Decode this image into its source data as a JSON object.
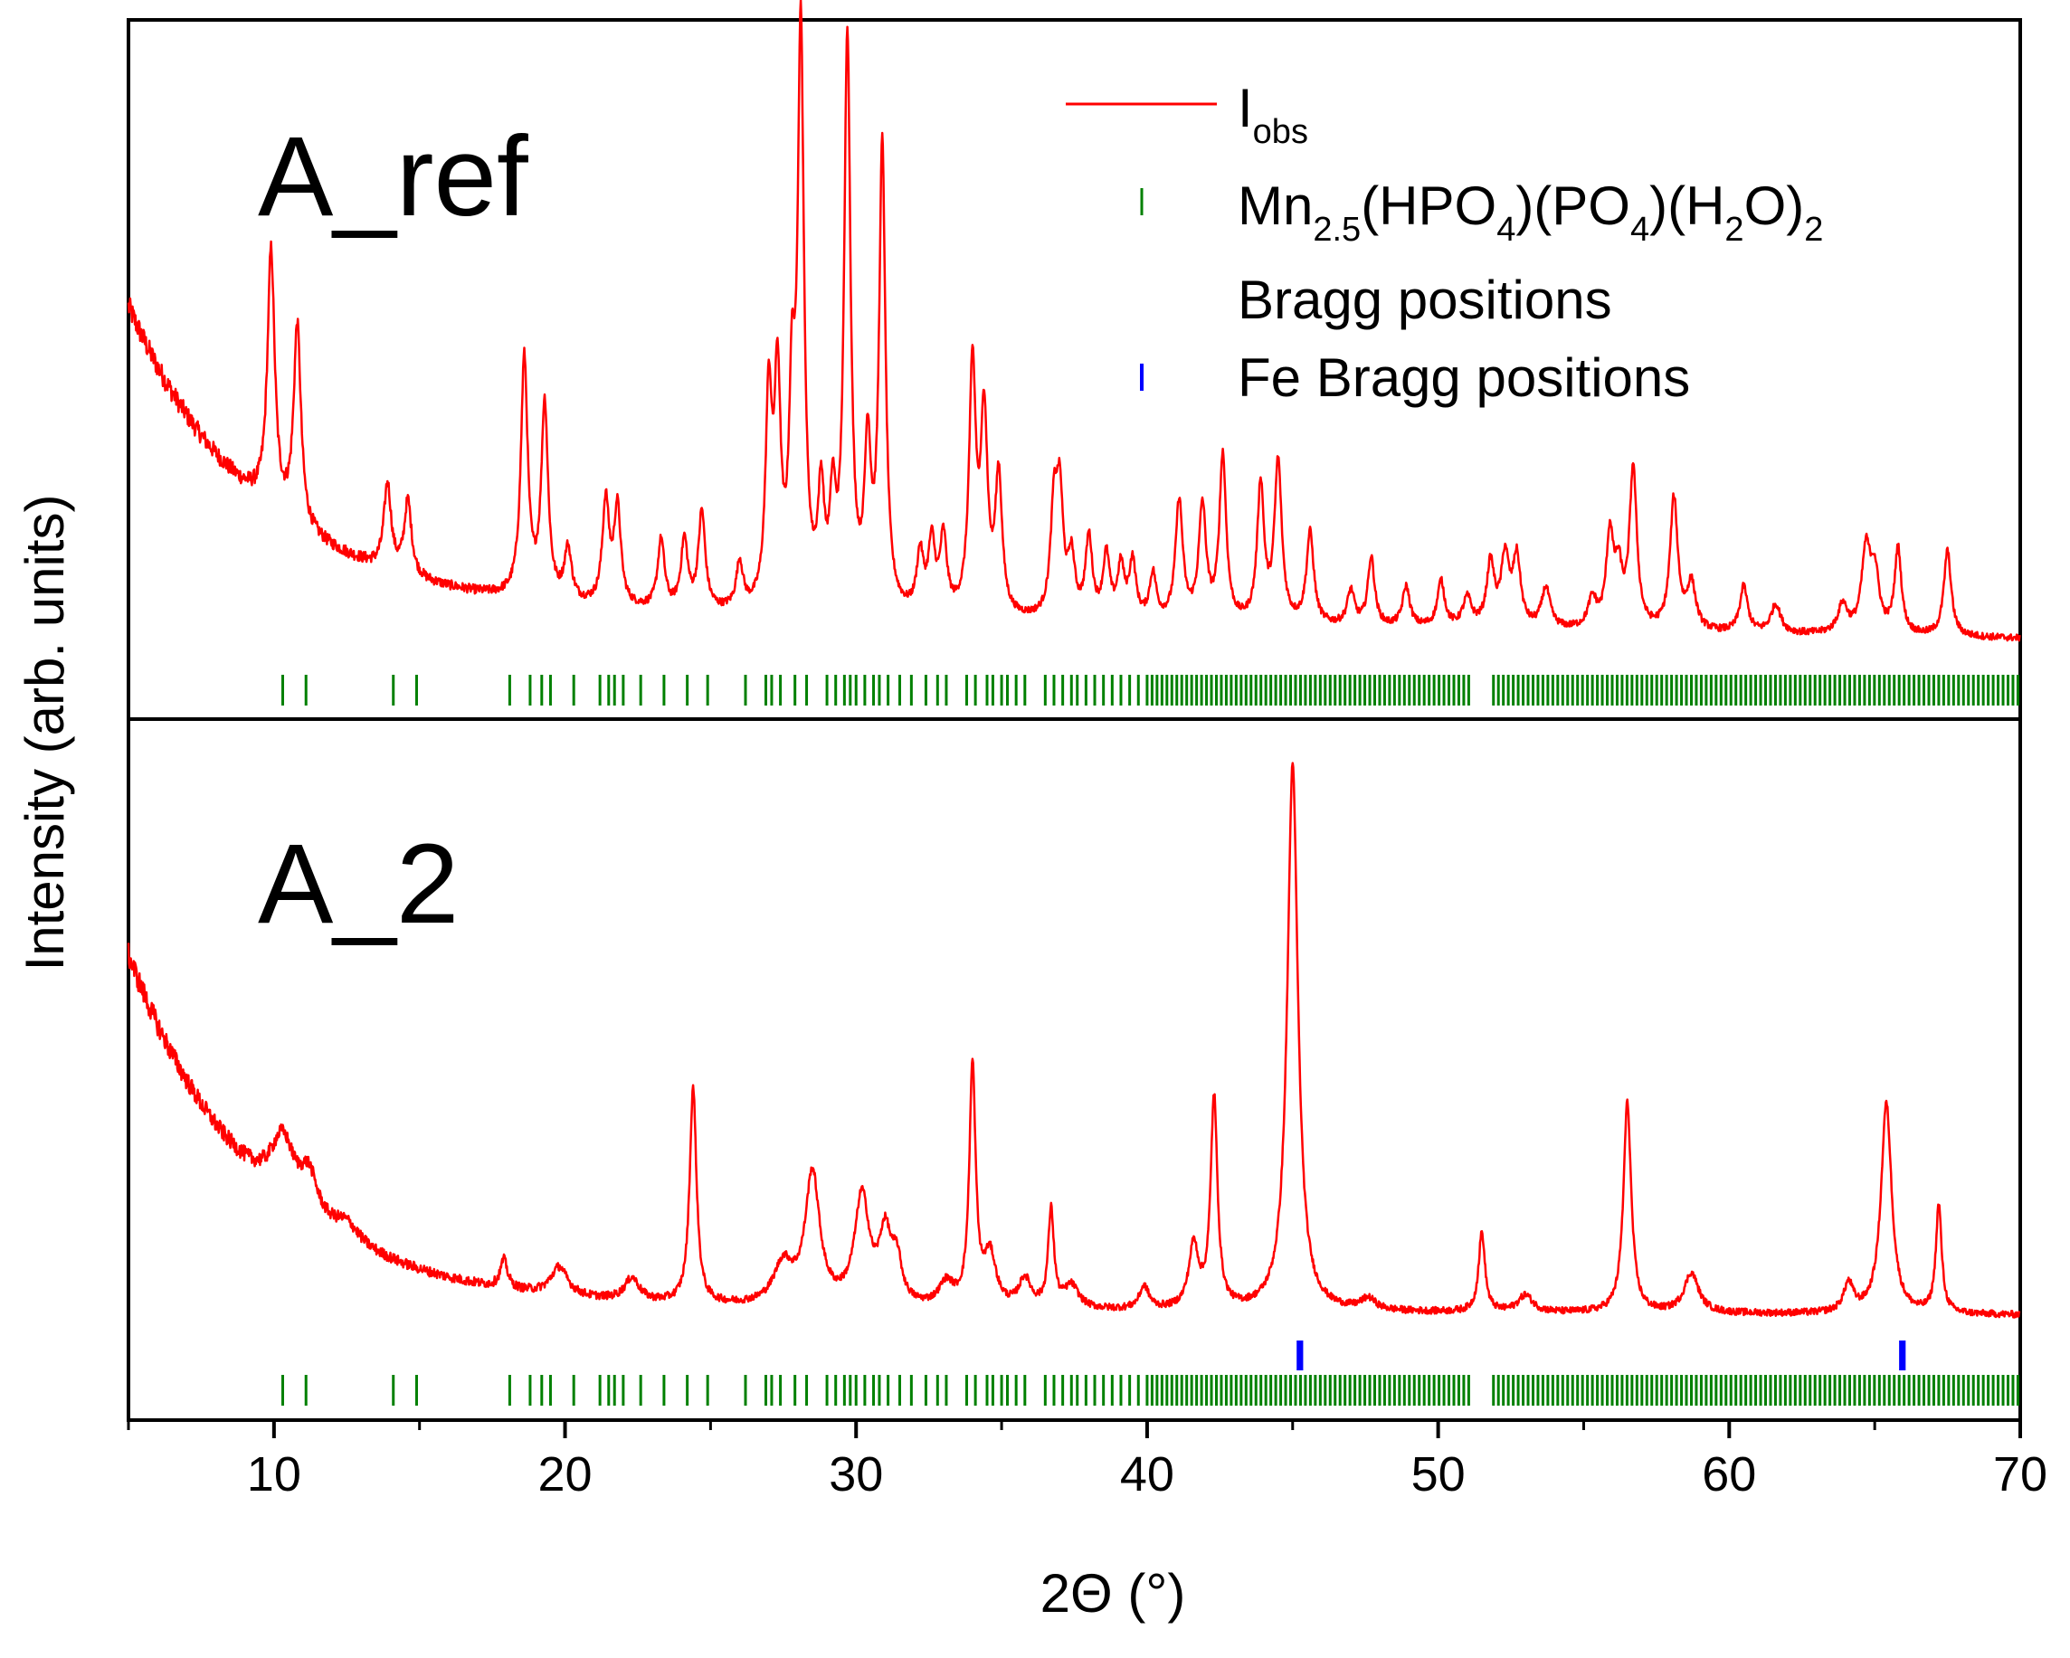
{
  "chart_data": {
    "type": "line",
    "x_axis": {
      "label": "2Θ (°)",
      "range": [
        5,
        70
      ],
      "ticks": [
        10,
        20,
        30,
        40,
        50,
        60,
        70
      ],
      "tick_labels": [
        "10",
        "20",
        "30",
        "40",
        "50",
        "60",
        "70"
      ]
    },
    "y_axis": {
      "label": "Intensity (arb. units)",
      "tick_labels": []
    },
    "legend": {
      "position": "top-right",
      "entries": [
        {
          "key": "iobs",
          "label": "I",
          "sub": "obs",
          "color": "#ff0000",
          "marker": "line"
        },
        {
          "key": "mn",
          "label_parts": [
            "Mn",
            "2.5",
            "(HPO",
            "4",
            ")(PO",
            "4",
            ")(H",
            "2",
            "O)",
            "2"
          ],
          "label_line2": "Bragg positions",
          "color": "#008000",
          "marker": "tick"
        },
        {
          "key": "fe",
          "label": "Fe Bragg positions",
          "color": "#0000ff",
          "marker": "tick"
        }
      ]
    },
    "panels": [
      {
        "name": "A_ref",
        "background": {
          "start": 0.53,
          "decay": 4.5,
          "floor": 0.035,
          "slope": 0.0008
        },
        "peaks": [
          [
            9.9,
            0.45,
            0.15
          ],
          [
            10.8,
            0.35,
            0.15
          ],
          [
            13.9,
            0.15,
            0.15
          ],
          [
            14.6,
            0.13,
            0.15
          ],
          [
            18.6,
            0.42,
            0.14
          ],
          [
            19.3,
            0.34,
            0.14
          ],
          [
            20.1,
            0.09,
            0.15
          ],
          [
            21.4,
            0.18,
            0.14
          ],
          [
            21.8,
            0.17,
            0.14
          ],
          [
            23.3,
            0.12,
            0.14
          ],
          [
            24.1,
            0.12,
            0.14
          ],
          [
            24.7,
            0.17,
            0.14
          ],
          [
            26.0,
            0.08,
            0.14
          ],
          [
            27.0,
            0.36,
            0.13
          ],
          [
            27.3,
            0.38,
            0.13
          ],
          [
            27.8,
            0.33,
            0.12
          ],
          [
            28.1,
            1.0,
            0.13
          ],
          [
            28.8,
            0.19,
            0.13
          ],
          [
            29.2,
            0.17,
            0.12
          ],
          [
            29.7,
            1.0,
            0.13
          ],
          [
            30.4,
            0.27,
            0.13
          ],
          [
            30.9,
            0.81,
            0.13
          ],
          [
            32.2,
            0.1,
            0.14
          ],
          [
            32.6,
            0.12,
            0.14
          ],
          [
            33.0,
            0.13,
            0.14
          ],
          [
            34.0,
            0.43,
            0.14
          ],
          [
            34.4,
            0.34,
            0.14
          ],
          [
            34.9,
            0.24,
            0.14
          ],
          [
            36.8,
            0.18,
            0.14
          ],
          [
            37.0,
            0.2,
            0.14
          ],
          [
            37.4,
            0.1,
            0.14
          ],
          [
            38.0,
            0.14,
            0.14
          ],
          [
            38.6,
            0.11,
            0.14
          ],
          [
            39.1,
            0.09,
            0.14
          ],
          [
            39.5,
            0.1,
            0.14
          ],
          [
            40.2,
            0.08,
            0.14
          ],
          [
            41.1,
            0.21,
            0.15
          ],
          [
            41.9,
            0.2,
            0.15
          ],
          [
            42.6,
            0.29,
            0.14
          ],
          [
            43.9,
            0.24,
            0.14
          ],
          [
            44.5,
            0.28,
            0.15
          ],
          [
            45.6,
            0.16,
            0.15
          ],
          [
            47.0,
            0.06,
            0.15
          ],
          [
            47.7,
            0.12,
            0.14
          ],
          [
            48.9,
            0.07,
            0.15
          ],
          [
            50.1,
            0.08,
            0.15
          ],
          [
            51.0,
            0.05,
            0.18
          ],
          [
            51.8,
            0.11,
            0.16
          ],
          [
            52.3,
            0.12,
            0.16
          ],
          [
            52.7,
            0.12,
            0.16
          ],
          [
            53.7,
            0.07,
            0.18
          ],
          [
            55.3,
            0.05,
            0.18
          ],
          [
            55.9,
            0.16,
            0.15
          ],
          [
            56.2,
            0.09,
            0.15
          ],
          [
            56.7,
            0.28,
            0.15
          ],
          [
            58.1,
            0.23,
            0.16
          ],
          [
            58.7,
            0.08,
            0.18
          ],
          [
            60.5,
            0.08,
            0.16
          ],
          [
            61.6,
            0.05,
            0.2
          ],
          [
            63.9,
            0.05,
            0.2
          ],
          [
            64.7,
            0.14,
            0.18
          ],
          [
            65.0,
            0.1,
            0.18
          ],
          [
            65.8,
            0.15,
            0.14
          ],
          [
            67.5,
            0.15,
            0.15
          ]
        ]
      },
      {
        "name": "A_2",
        "background": {
          "start": 0.62,
          "decay": 4.5,
          "floor": 0.035,
          "slope": 0.0002
        },
        "peaks": [
          [
            10.3,
            0.11,
            0.5
          ],
          [
            11.2,
            0.07,
            0.35
          ],
          [
            12.5,
            0.03,
            0.5
          ],
          [
            17.9,
            0.05,
            0.15
          ],
          [
            19.8,
            0.05,
            0.35
          ],
          [
            22.3,
            0.04,
            0.3
          ],
          [
            24.4,
            0.38,
            0.14
          ],
          [
            27.5,
            0.07,
            0.4
          ],
          [
            28.5,
            0.23,
            0.3
          ],
          [
            30.2,
            0.19,
            0.3
          ],
          [
            31.0,
            0.12,
            0.25
          ],
          [
            31.4,
            0.07,
            0.2
          ],
          [
            33.1,
            0.04,
            0.3
          ],
          [
            34.0,
            0.42,
            0.13
          ],
          [
            34.6,
            0.09,
            0.25
          ],
          [
            35.8,
            0.05,
            0.25
          ],
          [
            36.7,
            0.17,
            0.12
          ],
          [
            37.4,
            0.04,
            0.3
          ],
          [
            39.9,
            0.04,
            0.2
          ],
          [
            41.6,
            0.11,
            0.2
          ],
          [
            42.3,
            0.37,
            0.14
          ],
          [
            45.0,
            0.96,
            0.22
          ],
          [
            47.6,
            0.02,
            0.3
          ],
          [
            51.5,
            0.14,
            0.13
          ],
          [
            53.0,
            0.03,
            0.3
          ],
          [
            56.5,
            0.37,
            0.16
          ],
          [
            58.7,
            0.07,
            0.3
          ],
          [
            64.1,
            0.05,
            0.2
          ],
          [
            65.4,
            0.37,
            0.22
          ],
          [
            67.2,
            0.19,
            0.12
          ]
        ]
      }
    ],
    "mn_bragg_positions": [
      10.3,
      11.1,
      14.1,
      14.9,
      18.1,
      18.8,
      19.2,
      19.5,
      20.3,
      21.2,
      21.5,
      21.7,
      22.0,
      22.6,
      23.4,
      24.2,
      24.9,
      26.2,
      26.9,
      27.1,
      27.4,
      27.9,
      28.3,
      29.0,
      29.3,
      29.6,
      29.8,
      30.0,
      30.3,
      30.6,
      30.8,
      31.1,
      31.5,
      31.9,
      32.4,
      32.8,
      33.1,
      33.8,
      34.1,
      34.5,
      34.7,
      35.0,
      35.2,
      35.5,
      35.8,
      36.5,
      36.8,
      37.1,
      37.4,
      37.6,
      37.9,
      38.2,
      38.5,
      38.8,
      39.1,
      39.4,
      39.7
    ],
    "mn_bragg_dense_ranges": [
      [
        40.0,
        51.2
      ],
      [
        51.9,
        70.0
      ]
    ],
    "fe_bragg_positions": [
      45.2,
      45.3,
      65.9,
      66.0
    ]
  }
}
